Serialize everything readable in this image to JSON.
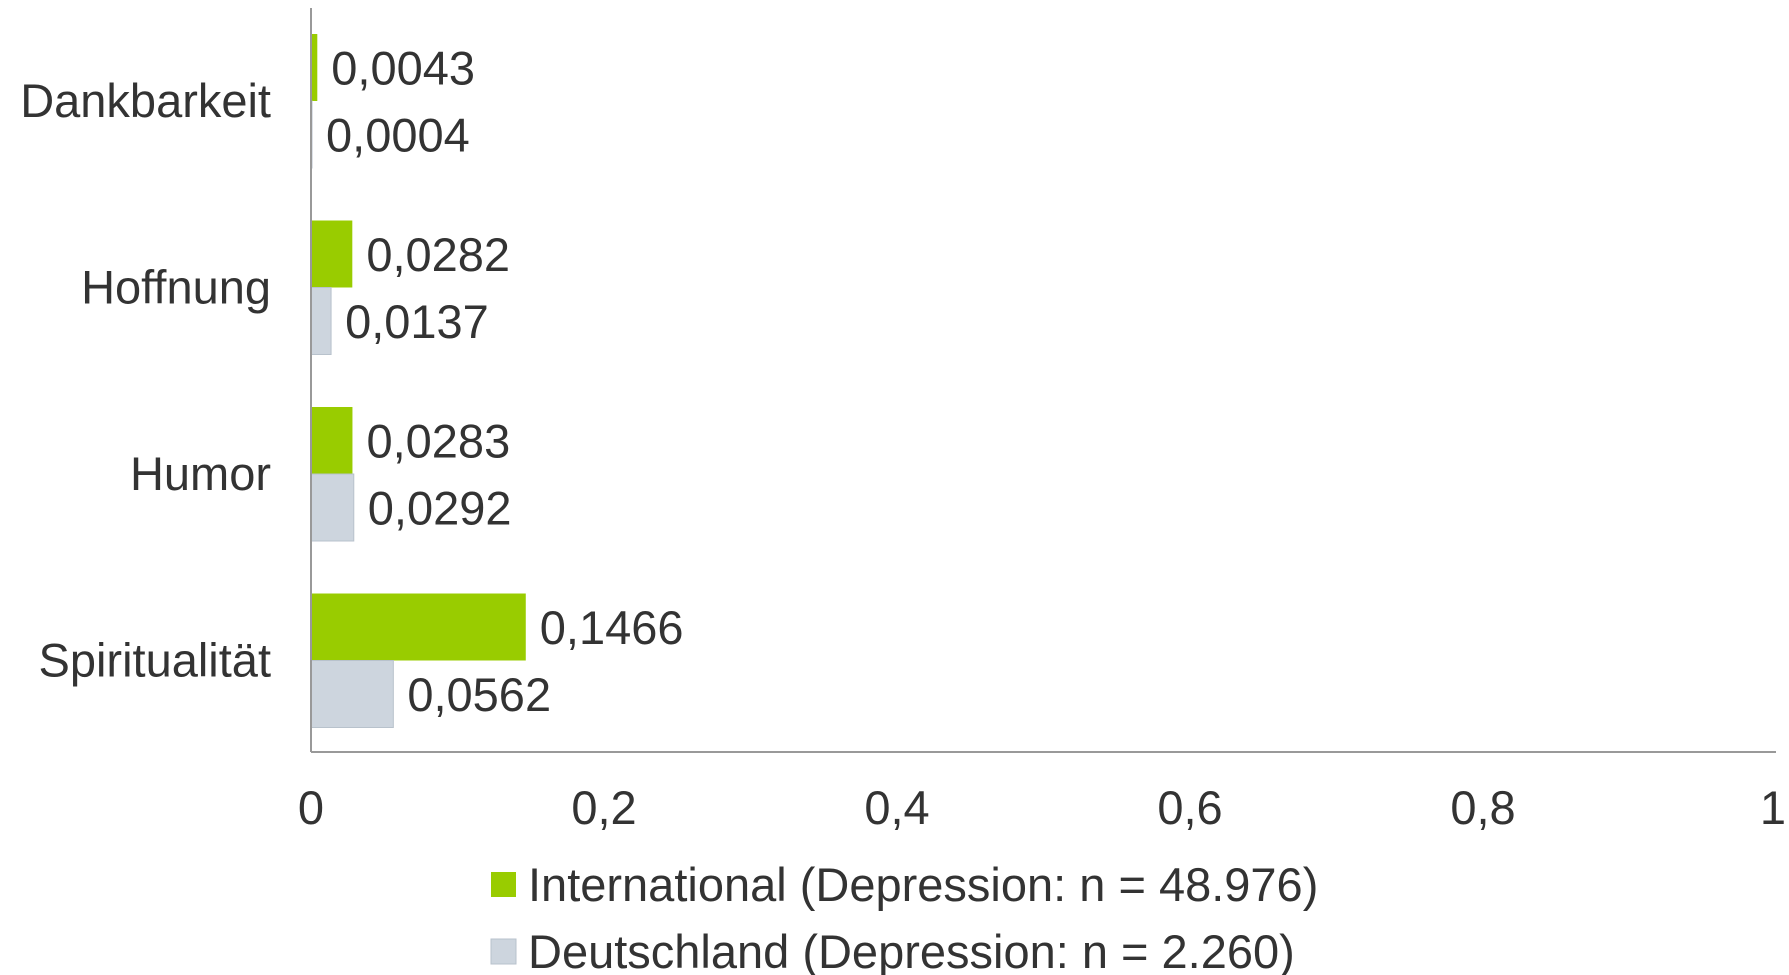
{
  "chart_data": {
    "type": "bar",
    "orientation": "horizontal",
    "categories": [
      "Dankbarkeit",
      "Hoffnung",
      "Humor",
      "Spiritualität"
    ],
    "series": [
      {
        "name": "International (Depression: n = 48.976)",
        "color": "#99cc00",
        "values": [
          0.0043,
          0.0282,
          0.0283,
          0.1466
        ],
        "labels": [
          "0,0043",
          "0,0282",
          "0,0283",
          "0,1466"
        ]
      },
      {
        "name": "Deutschland (Depression: n = 2.260)",
        "color": "#cdd5de",
        "values": [
          0.0004,
          0.0137,
          0.0292,
          0.0562
        ],
        "labels": [
          "0,0004",
          "0,0137",
          "0,0292",
          "0,0562"
        ]
      }
    ],
    "xlim": [
      0,
      1
    ],
    "xticks": [
      0,
      0.2,
      0.4,
      0.6,
      0.8,
      1
    ],
    "xtick_labels": [
      "0",
      "0,2",
      "0,4",
      "0,6",
      "0,8",
      "1"
    ],
    "grid": false,
    "legend_position": "bottom",
    "title": "",
    "xlabel": "",
    "ylabel": ""
  }
}
